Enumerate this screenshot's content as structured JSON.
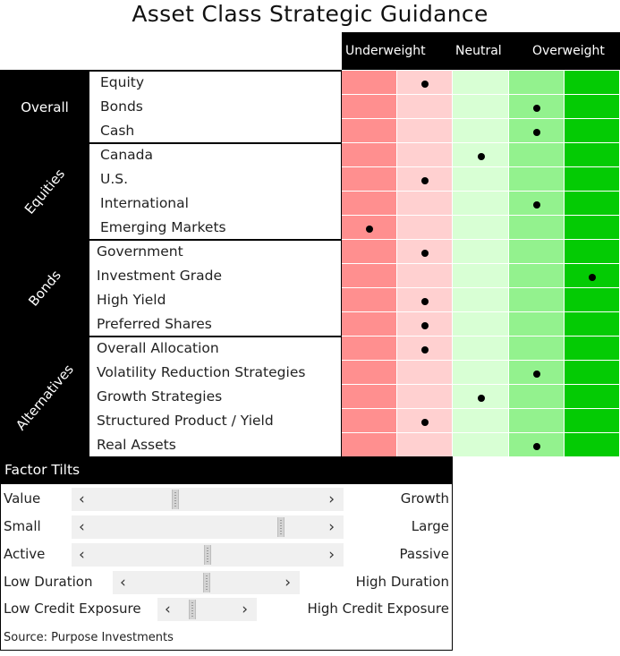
{
  "title": "Asset Class Strategic Guidance",
  "scale": {
    "labels": [
      "Underweight",
      "Neutral",
      "Overweight"
    ],
    "levels": 5,
    "colors": [
      "#ff8f8f",
      "#ffd0d0",
      "#d8ffd4",
      "#93f28e",
      "#04cb04"
    ]
  },
  "groups": [
    {
      "name": "Overall",
      "rotated": false,
      "rows": [
        {
          "label": "Equity",
          "rating": 2
        },
        {
          "label": "Bonds",
          "rating": 4
        },
        {
          "label": "Cash",
          "rating": 4
        }
      ]
    },
    {
      "name": "Equities",
      "rotated": true,
      "rows": [
        {
          "label": "Canada",
          "rating": 3
        },
        {
          "label": "U.S.",
          "rating": 2
        },
        {
          "label": "International",
          "rating": 4
        },
        {
          "label": "Emerging Markets",
          "rating": 1
        }
      ]
    },
    {
      "name": "Bonds",
      "rotated": true,
      "rows": [
        {
          "label": "Government",
          "rating": 2
        },
        {
          "label": "Investment Grade",
          "rating": 5
        },
        {
          "label": "High Yield",
          "rating": 2
        },
        {
          "label": "Preferred Shares",
          "rating": 2
        }
      ]
    },
    {
      "name": "Alternatives",
      "rotated": true,
      "rows": [
        {
          "label": "Overall Allocation",
          "rating": 2
        },
        {
          "label": "Volatility Reduction Strategies",
          "rating": 4
        },
        {
          "label": "Growth Strategies",
          "rating": 3
        },
        {
          "label": "Structured Product / Yield",
          "rating": 2
        },
        {
          "label": "Real Assets",
          "rating": 4
        }
      ]
    }
  ],
  "factor_tilts": {
    "title": "Factor Tilts",
    "items": [
      {
        "left": "Value",
        "right": "Growth",
        "position": 0.38
      },
      {
        "left": "Small",
        "right": "Large",
        "position": 0.77
      },
      {
        "left": "Active",
        "right": "Passive",
        "position": 0.5
      },
      {
        "left": "Low Duration",
        "right": "High Duration",
        "position": 0.5
      },
      {
        "left": "Low Credit Exposure",
        "right": "High Credit Exposure",
        "position": 0.35
      }
    ]
  },
  "source": "Source: Purpose Investments",
  "icons": {
    "left_arrow": "chevron-left-icon",
    "right_arrow": "chevron-right-icon"
  },
  "chart_data": {
    "type": "table",
    "title": "Asset Class Strategic Guidance",
    "columns": [
      "Underweight",
      "Neutral",
      "Overweight"
    ],
    "scale_levels": 5,
    "rows": [
      {
        "group": "Overall",
        "asset": "Equity",
        "rating": 2
      },
      {
        "group": "Overall",
        "asset": "Bonds",
        "rating": 4
      },
      {
        "group": "Overall",
        "asset": "Cash",
        "rating": 4
      },
      {
        "group": "Equities",
        "asset": "Canada",
        "rating": 3
      },
      {
        "group": "Equities",
        "asset": "U.S.",
        "rating": 2
      },
      {
        "group": "Equities",
        "asset": "International",
        "rating": 4
      },
      {
        "group": "Equities",
        "asset": "Emerging Markets",
        "rating": 1
      },
      {
        "group": "Bonds",
        "asset": "Government",
        "rating": 2
      },
      {
        "group": "Bonds",
        "asset": "Investment Grade",
        "rating": 5
      },
      {
        "group": "Bonds",
        "asset": "High Yield",
        "rating": 2
      },
      {
        "group": "Bonds",
        "asset": "Preferred Shares",
        "rating": 2
      },
      {
        "group": "Alternatives",
        "asset": "Overall Allocation",
        "rating": 2
      },
      {
        "group": "Alternatives",
        "asset": "Volatility Reduction Strategies",
        "rating": 4
      },
      {
        "group": "Alternatives",
        "asset": "Growth Strategies",
        "rating": 3
      },
      {
        "group": "Alternatives",
        "asset": "Structured Product / Yield",
        "rating": 2
      },
      {
        "group": "Alternatives",
        "asset": "Real Assets",
        "rating": 4
      }
    ]
  }
}
